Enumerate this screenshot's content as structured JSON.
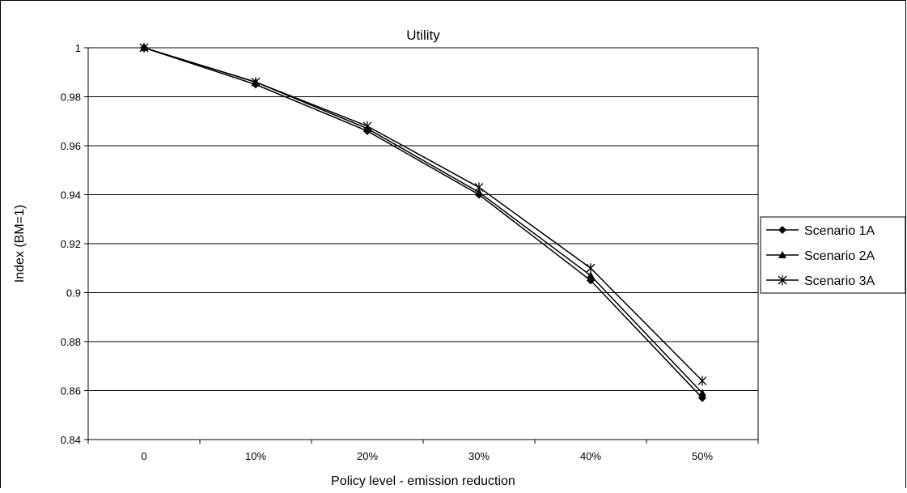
{
  "chart_data": {
    "type": "line",
    "title": "Utility",
    "xlabel": "Policy level - emission reduction",
    "ylabel": "Index (BM=1)",
    "categories": [
      "0",
      "10%",
      "20%",
      "30%",
      "40%",
      "50%"
    ],
    "ylim": [
      0.84,
      1.0
    ],
    "yticks": [
      "0.84",
      "0.86",
      "0.88",
      "0.9",
      "0.92",
      "0.94",
      "0.96",
      "0.98",
      "1"
    ],
    "grid": true,
    "legend_position": "right",
    "series": [
      {
        "name": "Scenario 1A",
        "marker": "diamond",
        "values": [
          1.0,
          0.985,
          0.966,
          0.94,
          0.905,
          0.857
        ]
      },
      {
        "name": "Scenario 2A",
        "marker": "triangle",
        "values": [
          1.0,
          0.986,
          0.967,
          0.941,
          0.907,
          0.859
        ]
      },
      {
        "name": "Scenario 3A",
        "marker": "star",
        "values": [
          1.0,
          0.986,
          0.968,
          0.943,
          0.91,
          0.864
        ]
      }
    ],
    "colors": {
      "line": "#000000",
      "grid": "#000000",
      "background": "#ffffff"
    }
  }
}
